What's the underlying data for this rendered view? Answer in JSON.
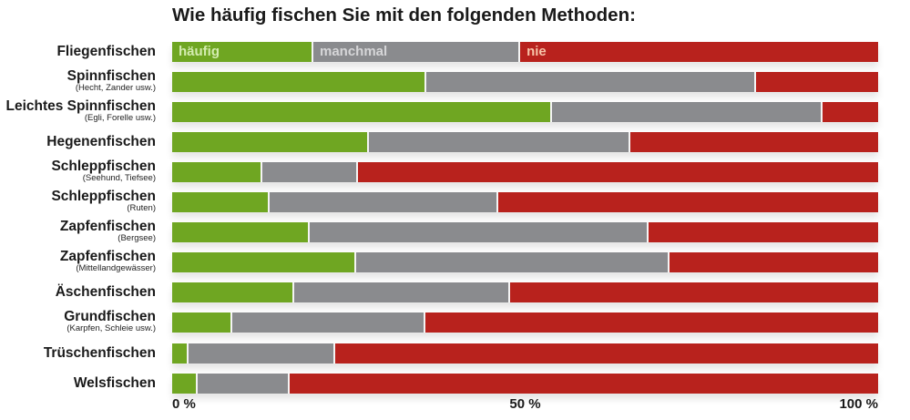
{
  "chart_data": {
    "type": "bar",
    "orientation": "horizontal",
    "stacked": true,
    "title": "Wie häufig fischen Sie mit den folgenden Methoden:",
    "xlabel": "",
    "ylabel": "",
    "xlim": [
      0,
      100
    ],
    "grid": false,
    "categories": [
      {
        "main": "Fliegenfischen",
        "sub": ""
      },
      {
        "main": "Spinnfischen",
        "sub": "(Hecht, Zander usw.)"
      },
      {
        "main": "Leichtes Spinnfischen",
        "sub": "(Egli, Forelle usw.)"
      },
      {
        "main": "Hegenenfischen",
        "sub": ""
      },
      {
        "main": "Schleppfischen",
        "sub": "(Seehund, Tiefsee)"
      },
      {
        "main": "Schleppfischen",
        "sub": "(Ruten)"
      },
      {
        "main": "Zapfenfischen",
        "sub": "(Bergsee)"
      },
      {
        "main": "Zapfenfischen",
        "sub": "(Mittellandgewässer)"
      },
      {
        "main": "Äschenfischen",
        "sub": ""
      },
      {
        "main": "Grundfischen",
        "sub": "(Karpfen, Schleie usw.)"
      },
      {
        "main": "Trüschenfischen",
        "sub": ""
      },
      {
        "main": "Welsfischen",
        "sub": ""
      }
    ],
    "series": [
      {
        "name": "häufig",
        "color": "#6fa622",
        "label_color": "#d4ecb0",
        "values": [
          20.0,
          36.0,
          53.8,
          27.9,
          12.8,
          13.8,
          19.5,
          26.1,
          17.3,
          8.5,
          2.3,
          3.6
        ]
      },
      {
        "name": "manchmal",
        "color": "#8a8b8e",
        "label_color": "#d6d6d8",
        "values": [
          29.3,
          46.7,
          38.3,
          37.0,
          13.5,
          32.4,
          48.0,
          44.3,
          30.6,
          27.4,
          20.8,
          13.0
        ]
      },
      {
        "name": "nie",
        "color": "#b8221d",
        "label_color": "#f6c3a8",
        "values": [
          50.7,
          17.3,
          7.9,
          35.1,
          73.7,
          53.8,
          32.5,
          29.6,
          52.1,
          64.1,
          76.9,
          83.4
        ]
      }
    ],
    "legend": "inside-first-bar",
    "ticks": [
      {
        "value": 0,
        "label": "0 %"
      },
      {
        "value": 50,
        "label": "50 %"
      },
      {
        "value": 100,
        "label": "100 %"
      }
    ]
  }
}
